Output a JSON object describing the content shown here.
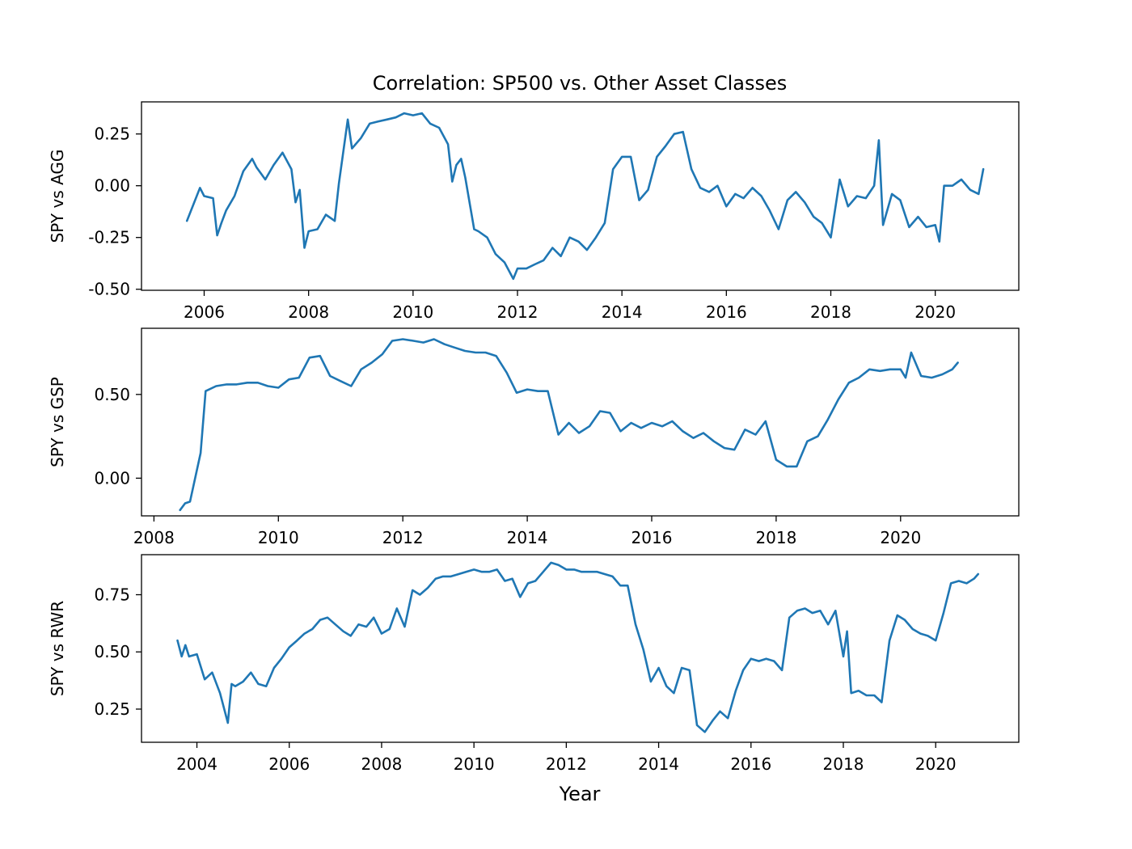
{
  "chart_data": {
    "type": "line",
    "title": "Correlation: SP500 vs. Other Asset Classes",
    "xlabel": "Year",
    "grid": false,
    "legend": "none",
    "colors": {
      "line": "#1f77b4"
    },
    "subplots": [
      {
        "ylabel": "SPY vs AGG",
        "xlim": [
          2004.8,
          2021.6
        ],
        "ylim": [
          -0.505,
          0.405
        ],
        "xticks": [
          2006,
          2008,
          2010,
          2012,
          2014,
          2016,
          2018,
          2020
        ],
        "xtick_labels": [
          "2006",
          "2008",
          "2010",
          "2012",
          "2014",
          "2016",
          "2018",
          "2020"
        ],
        "yticks": [
          -0.5,
          -0.25,
          0.0,
          0.25
        ],
        "ytick_labels": [
          "-0.50",
          "-0.25",
          "0.00",
          "0.25"
        ],
        "series": [
          {
            "x": [
              2005.67,
              2005.92,
              2006.0,
              2006.17,
              2006.25,
              2006.33,
              2006.42,
              2006.58,
              2006.75,
              2006.92,
              2007.0,
              2007.17,
              2007.33,
              2007.5,
              2007.67,
              2007.75,
              2007.83,
              2007.92,
              2008.0,
              2008.17,
              2008.33,
              2008.5,
              2008.58,
              2008.75,
              2008.83,
              2009.0,
              2009.17,
              2009.33,
              2009.5,
              2009.67,
              2009.83,
              2010.0,
              2010.17,
              2010.33,
              2010.5,
              2010.67,
              2010.75,
              2010.83,
              2010.92,
              2011.0,
              2011.17,
              2011.25,
              2011.42,
              2011.58,
              2011.75,
              2011.92,
              2012.0,
              2012.17,
              2012.33,
              2012.5,
              2012.67,
              2012.83,
              2013.0,
              2013.17,
              2013.33,
              2013.5,
              2013.67,
              2013.83,
              2014.0,
              2014.17,
              2014.33,
              2014.5,
              2014.67,
              2014.83,
              2015.0,
              2015.17,
              2015.33,
              2015.5,
              2015.67,
              2015.83,
              2016.0,
              2016.17,
              2016.33,
              2016.5,
              2016.67,
              2016.83,
              2017.0,
              2017.17,
              2017.33,
              2017.5,
              2017.67,
              2017.83,
              2018.0,
              2018.17,
              2018.33,
              2018.5,
              2018.67,
              2018.83,
              2018.92,
              2019.0,
              2019.17,
              2019.33,
              2019.5,
              2019.67,
              2019.83,
              2020.0,
              2020.08,
              2020.17,
              2020.33,
              2020.5,
              2020.67,
              2020.83,
              2020.92
            ],
            "y": [
              -0.17,
              -0.01,
              -0.05,
              -0.06,
              -0.24,
              -0.18,
              -0.12,
              -0.05,
              0.07,
              0.13,
              0.09,
              0.03,
              0.1,
              0.16,
              0.08,
              -0.08,
              -0.02,
              -0.3,
              -0.22,
              -0.21,
              -0.14,
              -0.17,
              0.01,
              0.32,
              0.18,
              0.23,
              0.3,
              0.31,
              0.32,
              0.33,
              0.35,
              0.34,
              0.35,
              0.3,
              0.28,
              0.2,
              0.02,
              0.1,
              0.13,
              0.04,
              -0.21,
              -0.22,
              -0.25,
              -0.33,
              -0.37,
              -0.45,
              -0.4,
              -0.4,
              -0.38,
              -0.36,
              -0.3,
              -0.34,
              -0.25,
              -0.27,
              -0.31,
              -0.25,
              -0.18,
              0.08,
              0.14,
              0.14,
              -0.07,
              -0.02,
              0.14,
              0.19,
              0.25,
              0.26,
              0.08,
              -0.01,
              -0.03,
              0.0,
              -0.1,
              -0.04,
              -0.06,
              -0.01,
              -0.05,
              -0.12,
              -0.21,
              -0.07,
              -0.03,
              -0.08,
              -0.15,
              -0.18,
              -0.25,
              0.03,
              -0.1,
              -0.05,
              -0.06,
              0.0,
              0.22,
              -0.19,
              -0.04,
              -0.07,
              -0.2,
              -0.15,
              -0.2,
              -0.19,
              -0.27,
              0.0,
              0.0,
              0.03,
              -0.02,
              -0.04,
              0.08
            ]
          }
        ]
      },
      {
        "ylabel": "SPY vs GSP",
        "xlim": [
          2007.8,
          2021.9
        ],
        "ylim": [
          -0.225,
          0.895
        ],
        "xticks": [
          2008,
          2010,
          2012,
          2014,
          2016,
          2018,
          2020
        ],
        "xtick_labels": [
          "2008",
          "2010",
          "2012",
          "2014",
          "2016",
          "2018",
          "2020"
        ],
        "yticks": [
          0.0,
          0.5
        ],
        "ytick_labels": [
          "0.00",
          "0.50"
        ],
        "series": [
          {
            "x": [
              2008.42,
              2008.5,
              2008.58,
              2008.75,
              2008.83,
              2009.0,
              2009.17,
              2009.33,
              2009.5,
              2009.67,
              2009.83,
              2010.0,
              2010.17,
              2010.33,
              2010.5,
              2010.67,
              2010.83,
              2011.0,
              2011.17,
              2011.33,
              2011.5,
              2011.67,
              2011.83,
              2012.0,
              2012.17,
              2012.33,
              2012.5,
              2012.67,
              2012.83,
              2013.0,
              2013.17,
              2013.33,
              2013.5,
              2013.67,
              2013.83,
              2014.0,
              2014.17,
              2014.33,
              2014.5,
              2014.67,
              2014.83,
              2015.0,
              2015.17,
              2015.33,
              2015.5,
              2015.67,
              2015.83,
              2016.0,
              2016.17,
              2016.33,
              2016.5,
              2016.67,
              2016.83,
              2017.0,
              2017.17,
              2017.33,
              2017.5,
              2017.67,
              2017.83,
              2018.0,
              2018.17,
              2018.33,
              2018.5,
              2018.67,
              2018.83,
              2019.0,
              2019.17,
              2019.33,
              2019.5,
              2019.67,
              2019.83,
              2020.0,
              2020.08,
              2020.17,
              2020.33,
              2020.5,
              2020.67,
              2020.83,
              2020.92
            ],
            "y": [
              -0.19,
              -0.15,
              -0.14,
              0.15,
              0.52,
              0.55,
              0.56,
              0.56,
              0.57,
              0.57,
              0.55,
              0.54,
              0.59,
              0.6,
              0.72,
              0.73,
              0.61,
              0.58,
              0.55,
              0.65,
              0.69,
              0.74,
              0.82,
              0.83,
              0.82,
              0.81,
              0.83,
              0.8,
              0.78,
              0.76,
              0.75,
              0.75,
              0.73,
              0.63,
              0.51,
              0.53,
              0.52,
              0.52,
              0.26,
              0.33,
              0.27,
              0.31,
              0.4,
              0.39,
              0.28,
              0.33,
              0.3,
              0.33,
              0.31,
              0.34,
              0.28,
              0.24,
              0.27,
              0.22,
              0.18,
              0.17,
              0.29,
              0.26,
              0.34,
              0.11,
              0.07,
              0.07,
              0.22,
              0.25,
              0.35,
              0.47,
              0.57,
              0.6,
              0.65,
              0.64,
              0.65,
              0.65,
              0.6,
              0.75,
              0.61,
              0.6,
              0.62,
              0.65,
              0.69
            ]
          }
        ]
      },
      {
        "ylabel": "SPY vs RWR",
        "xlim": [
          2002.8,
          2021.8
        ],
        "ylim": [
          0.105,
          0.925
        ],
        "xticks": [
          2004,
          2006,
          2008,
          2010,
          2012,
          2014,
          2016,
          2018,
          2020
        ],
        "xtick_labels": [
          "2004",
          "2006",
          "2008",
          "2010",
          "2012",
          "2014",
          "2016",
          "2018",
          "2020"
        ],
        "yticks": [
          0.25,
          0.5,
          0.75
        ],
        "ytick_labels": [
          "0.25",
          "0.50",
          "0.75"
        ],
        "series": [
          {
            "x": [
              2003.58,
              2003.67,
              2003.75,
              2003.83,
              2004.0,
              2004.17,
              2004.33,
              2004.5,
              2004.67,
              2004.75,
              2004.83,
              2005.0,
              2005.17,
              2005.33,
              2005.5,
              2005.67,
              2005.83,
              2006.0,
              2006.17,
              2006.33,
              2006.5,
              2006.67,
              2006.83,
              2007.0,
              2007.17,
              2007.33,
              2007.5,
              2007.67,
              2007.83,
              2008.0,
              2008.17,
              2008.33,
              2008.5,
              2008.67,
              2008.83,
              2009.0,
              2009.17,
              2009.33,
              2009.5,
              2009.67,
              2009.83,
              2010.0,
              2010.17,
              2010.33,
              2010.5,
              2010.67,
              2010.83,
              2011.0,
              2011.17,
              2011.33,
              2011.5,
              2011.67,
              2011.83,
              2012.0,
              2012.17,
              2012.33,
              2012.5,
              2012.67,
              2012.83,
              2013.0,
              2013.17,
              2013.33,
              2013.5,
              2013.67,
              2013.83,
              2014.0,
              2014.17,
              2014.33,
              2014.5,
              2014.67,
              2014.83,
              2015.0,
              2015.17,
              2015.33,
              2015.5,
              2015.67,
              2015.83,
              2016.0,
              2016.17,
              2016.33,
              2016.5,
              2016.67,
              2016.83,
              2017.0,
              2017.17,
              2017.33,
              2017.5,
              2017.67,
              2017.83,
              2018.0,
              2018.08,
              2018.17,
              2018.33,
              2018.5,
              2018.67,
              2018.83,
              2019.0,
              2019.17,
              2019.33,
              2019.5,
              2019.67,
              2019.83,
              2020.0,
              2020.17,
              2020.33,
              2020.5,
              2020.67,
              2020.83,
              2020.92
            ],
            "y": [
              0.55,
              0.48,
              0.53,
              0.48,
              0.49,
              0.38,
              0.41,
              0.32,
              0.19,
              0.36,
              0.35,
              0.37,
              0.41,
              0.36,
              0.35,
              0.43,
              0.47,
              0.52,
              0.55,
              0.58,
              0.6,
              0.64,
              0.65,
              0.62,
              0.59,
              0.57,
              0.62,
              0.61,
              0.65,
              0.58,
              0.6,
              0.69,
              0.61,
              0.77,
              0.75,
              0.78,
              0.82,
              0.83,
              0.83,
              0.84,
              0.85,
              0.86,
              0.85,
              0.85,
              0.86,
              0.81,
              0.82,
              0.74,
              0.8,
              0.81,
              0.85,
              0.89,
              0.88,
              0.86,
              0.86,
              0.85,
              0.85,
              0.85,
              0.84,
              0.83,
              0.79,
              0.79,
              0.62,
              0.51,
              0.37,
              0.43,
              0.35,
              0.32,
              0.43,
              0.42,
              0.18,
              0.15,
              0.2,
              0.24,
              0.21,
              0.33,
              0.42,
              0.47,
              0.46,
              0.47,
              0.46,
              0.42,
              0.65,
              0.68,
              0.69,
              0.67,
              0.68,
              0.62,
              0.68,
              0.48,
              0.59,
              0.32,
              0.33,
              0.31,
              0.31,
              0.28,
              0.55,
              0.66,
              0.64,
              0.6,
              0.58,
              0.57,
              0.55,
              0.67,
              0.8,
              0.81,
              0.8,
              0.82,
              0.84
            ]
          }
        ]
      }
    ]
  }
}
